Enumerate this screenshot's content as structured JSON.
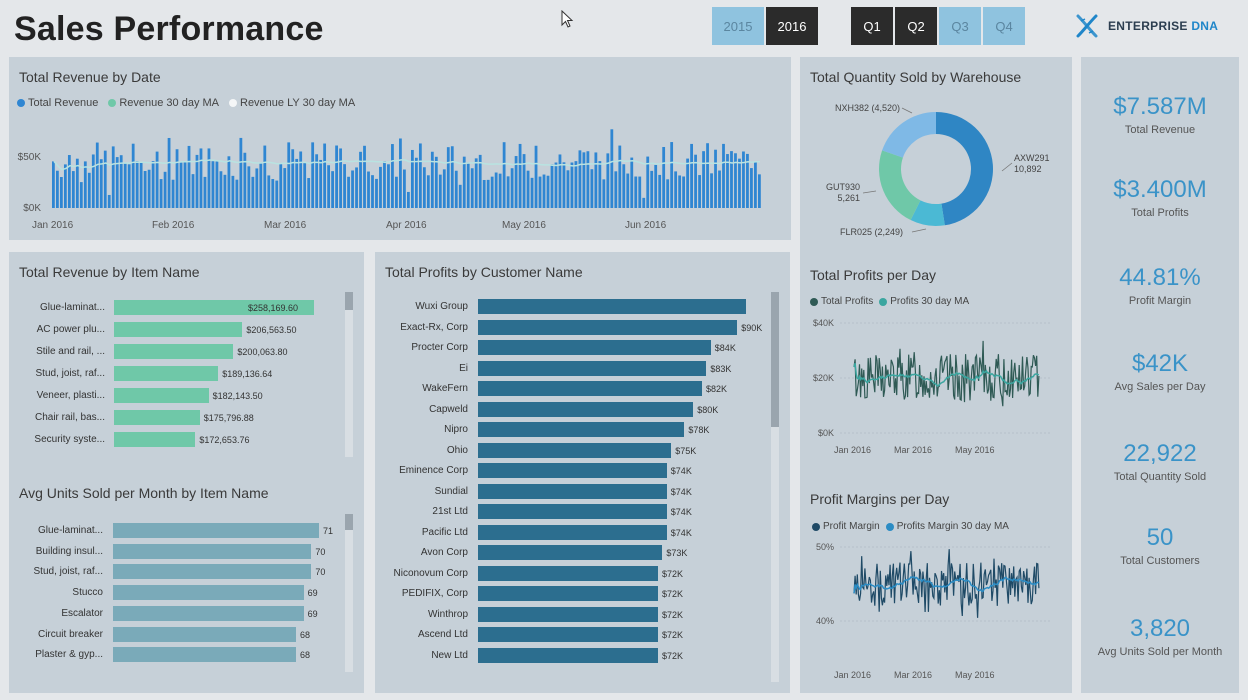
{
  "title": "Sales Performance",
  "years": [
    {
      "label": "2015",
      "selected": false
    },
    {
      "label": "2016",
      "selected": true
    }
  ],
  "quarters": [
    {
      "label": "Q1",
      "selected": true
    },
    {
      "label": "Q2",
      "selected": true
    },
    {
      "label": "Q3",
      "selected": false
    },
    {
      "label": "Q4",
      "selected": false
    }
  ],
  "logo": {
    "part1": "ENTERPRISE",
    "part2": "DNA"
  },
  "colors": {
    "accent": "#3a93c8",
    "revenue": "#2f86d2",
    "teal": "#6fc8a8",
    "customer_bar": "#2c6e8f",
    "units_bar": "#6aa1b4",
    "profit_line": "#2f5a55",
    "margin_line": "#1f4a66"
  },
  "revenue_by_date": {
    "title": "Total Revenue by Date",
    "legend": [
      "Total Revenue",
      "Revenue 30 day MA",
      "Revenue LY 30 day MA"
    ],
    "y_ticks": [
      "$50K",
      "$0K"
    ],
    "x_ticks": [
      "Jan 2016",
      "Feb 2016",
      "Mar 2016",
      "Apr 2016",
      "May 2016",
      "Jun 2016"
    ]
  },
  "item_revenue": {
    "title": "Total Revenue by Item Name",
    "items": [
      {
        "name": "Glue-laminat...",
        "value": "$258,169.60",
        "amount": 258169.6
      },
      {
        "name": "AC power plu...",
        "value": "$206,563.50",
        "amount": 206563.5
      },
      {
        "name": "Stile and rail, ...",
        "value": "$200,063.80",
        "amount": 200063.8
      },
      {
        "name": "Stud, joist, raf...",
        "value": "$189,136.64",
        "amount": 189136.64
      },
      {
        "name": "Veneer, plasti...",
        "value": "$182,143.50",
        "amount": 182143.5
      },
      {
        "name": "Chair rail, bas...",
        "value": "$175,796.88",
        "amount": 175796.88
      },
      {
        "name": "Security syste...",
        "value": "$172,653.76",
        "amount": 172653.76
      }
    ]
  },
  "units_by_item": {
    "title": "Avg Units Sold per Month by Item Name",
    "items": [
      {
        "name": "Glue-laminat...",
        "value": "71",
        "amount": 71
      },
      {
        "name": "Building insul...",
        "value": "70",
        "amount": 70
      },
      {
        "name": "Stud, joist, raf...",
        "value": "70",
        "amount": 70
      },
      {
        "name": "Stucco",
        "value": "69",
        "amount": 69
      },
      {
        "name": "Escalator",
        "value": "69",
        "amount": 69
      },
      {
        "name": "Circuit breaker",
        "value": "68",
        "amount": 68
      },
      {
        "name": "Plaster & gyp...",
        "value": "68",
        "amount": 68
      }
    ]
  },
  "profits_by_customer": {
    "title": "Total Profits by Customer Name",
    "items": [
      {
        "name": "Wuxi Group",
        "value": "",
        "amount": 92
      },
      {
        "name": "Exact-Rx, Corp",
        "value": "$90K",
        "amount": 90
      },
      {
        "name": "Procter Corp",
        "value": "$84K",
        "amount": 84
      },
      {
        "name": "Ei",
        "value": "$83K",
        "amount": 83
      },
      {
        "name": "WakeFern",
        "value": "$82K",
        "amount": 82
      },
      {
        "name": "Capweld",
        "value": "$80K",
        "amount": 80
      },
      {
        "name": "Nipro",
        "value": "$78K",
        "amount": 78
      },
      {
        "name": "Ohio",
        "value": "$75K",
        "amount": 75
      },
      {
        "name": "Eminence Corp",
        "value": "$74K",
        "amount": 74
      },
      {
        "name": "Sundial",
        "value": "$74K",
        "amount": 74
      },
      {
        "name": "21st Ltd",
        "value": "$74K",
        "amount": 74
      },
      {
        "name": "Pacific Ltd",
        "value": "$74K",
        "amount": 74
      },
      {
        "name": "Avon Corp",
        "value": "$73K",
        "amount": 73
      },
      {
        "name": "Niconovum Corp",
        "value": "$72K",
        "amount": 72
      },
      {
        "name": "PEDIFIX, Corp",
        "value": "$72K",
        "amount": 72
      },
      {
        "name": "Winthrop",
        "value": "$72K",
        "amount": 72
      },
      {
        "name": "Ascend Ltd",
        "value": "$72K",
        "amount": 72
      },
      {
        "name": "New Ltd",
        "value": "$72K",
        "amount": 72
      }
    ]
  },
  "warehouse": {
    "title": "Total Quantity Sold by Warehouse",
    "labels": {
      "axw_name": "AXW291",
      "axw_value": "10,892",
      "gut_name": "GUT930",
      "gut_value": "5,261",
      "nxh": "NXH382 (4,520)",
      "flr": "FLR025 (2,249)"
    }
  },
  "profits_per_day": {
    "title": "Total Profits per Day",
    "legend": [
      "Total Profits",
      "Profits 30 day MA"
    ],
    "y_ticks": [
      "$40K",
      "$20K",
      "$0K"
    ],
    "x_ticks": [
      "Jan 2016",
      "Mar 2016",
      "May 2016"
    ]
  },
  "margins_per_day": {
    "title": "Profit Margins per Day",
    "legend": [
      "Profit Margin",
      "Profits Margin 30 day MA"
    ],
    "y_ticks": [
      "50%",
      "40%"
    ],
    "x_ticks": [
      "Jan 2016",
      "Mar 2016",
      "May 2016"
    ]
  },
  "kpis": [
    {
      "value": "$7.587M",
      "label": "Total Revenue"
    },
    {
      "value": "$3.400M",
      "label": "Total Profits"
    },
    {
      "value": "44.81%",
      "label": "Profit Margin"
    },
    {
      "value": "$42K",
      "label": "Avg Sales per Day"
    },
    {
      "value": "22,922",
      "label": "Total Quantity Sold"
    },
    {
      "value": "50",
      "label": "Total Customers"
    },
    {
      "value": "3,820",
      "label": "Avg Units Sold per Month"
    }
  ],
  "chart_data": [
    {
      "type": "bar",
      "title": "Total Revenue by Item Name",
      "categories": [
        "Glue-laminat...",
        "AC power plu...",
        "Stile and rail, ...",
        "Stud, joist, raf...",
        "Veneer, plasti...",
        "Chair rail, bas...",
        "Security syste..."
      ],
      "values": [
        258169.6,
        206563.5,
        200063.8,
        189136.64,
        182143.5,
        175796.88,
        172653.76
      ]
    },
    {
      "type": "bar",
      "title": "Avg Units Sold per Month by Item Name",
      "categories": [
        "Glue-laminat...",
        "Building insul...",
        "Stud, joist, raf...",
        "Stucco",
        "Escalator",
        "Circuit breaker",
        "Plaster & gyp..."
      ],
      "values": [
        71,
        70,
        70,
        69,
        69,
        68,
        68
      ]
    },
    {
      "type": "bar",
      "title": "Total Profits by Customer Name",
      "categories": [
        "Wuxi Group",
        "Exact-Rx, Corp",
        "Procter Corp",
        "Ei",
        "WakeFern",
        "Capweld",
        "Nipro",
        "Ohio",
        "Eminence Corp",
        "Sundial",
        "21st Ltd",
        "Pacific Ltd",
        "Avon Corp",
        "Niconovum Corp",
        "PEDIFIX, Corp",
        "Winthrop",
        "Ascend Ltd",
        "New Ltd"
      ],
      "values": [
        92,
        90,
        84,
        83,
        82,
        80,
        78,
        75,
        74,
        74,
        74,
        74,
        73,
        72,
        72,
        72,
        72,
        72
      ],
      "ylabel": "$K"
    },
    {
      "type": "pie",
      "title": "Total Quantity Sold by Warehouse",
      "categories": [
        "AXW291",
        "GUT930",
        "NXH382",
        "FLR025"
      ],
      "values": [
        10892,
        5261,
        4520,
        2249
      ],
      "colors": [
        "#2f86c4",
        "#6fc8a8",
        "#7fb9e6",
        "#4bb9d4"
      ]
    }
  ]
}
